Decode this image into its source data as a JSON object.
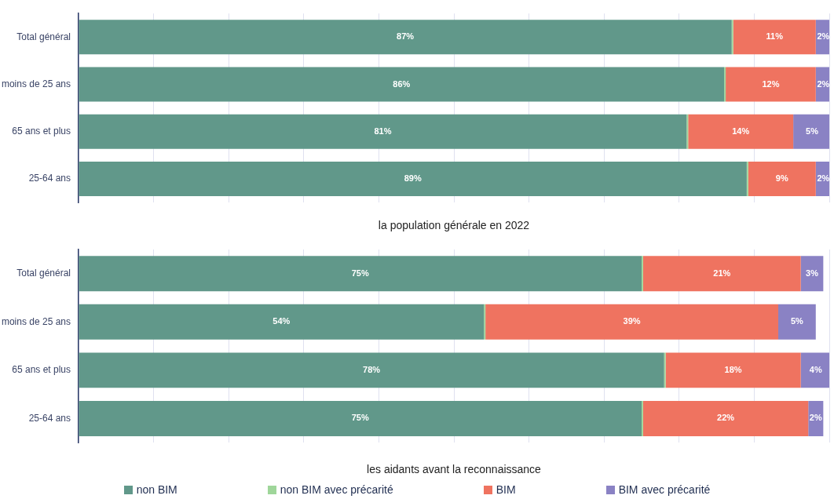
{
  "chart_data": [
    {
      "type": "bar",
      "orientation": "horizontal",
      "stacked": true,
      "xlabel": "la population générale en 2022",
      "categories": [
        "Total général",
        "moins de 25 ans",
        "65 ans et plus",
        "25-64 ans"
      ],
      "series": [
        {
          "color": "#61988a",
          "values": [
            87,
            86,
            81,
            89
          ],
          "value_labels": [
            "87%",
            "86%",
            "81%",
            "89%"
          ]
        },
        {
          "color": "#9fd69a",
          "values": [
            0.2,
            0.2,
            0.2,
            0.2
          ]
        },
        {
          "color": "#ef7360",
          "values": [
            11,
            12,
            14,
            9
          ],
          "value_labels": [
            "11%",
            "12%",
            "14%",
            "9%"
          ]
        },
        {
          "color": "#8a82c4",
          "values": [
            2,
            2,
            5,
            2
          ],
          "value_labels": [
            "2%",
            "2%",
            "5%",
            "2%"
          ]
        }
      ],
      "xlim": [
        0,
        100
      ],
      "xticks": [
        {
          "value": 0,
          "label": null
        },
        {
          "value": 10,
          "label": null
        },
        {
          "value": 20,
          "label": null
        },
        {
          "value": 30,
          "label": null
        },
        {
          "value": 40,
          "label": null
        },
        {
          "value": 50,
          "label": null
        },
        {
          "value": 60,
          "label": null
        },
        {
          "value": 70,
          "label": null
        },
        {
          "value": 80,
          "label": null
        },
        {
          "value": 90,
          "label": null
        },
        {
          "value": 100,
          "label": null
        }
      ],
      "grid": "x",
      "tick_labels": "y",
      "legend": false
    },
    {
      "type": "bar",
      "orientation": "horizontal",
      "stacked": true,
      "xlabel": "les aidants avant la reconnaissance",
      "categories": [
        "Total général",
        "moins de 25 ans",
        "65 ans et plus",
        "25-64 ans"
      ],
      "series": [
        {
          "name": "non BIM",
          "color": "#61988a",
          "values": [
            75,
            54,
            78,
            75
          ],
          "value_labels": [
            "75%",
            "54%",
            "78%",
            "75%"
          ]
        },
        {
          "name": "non BIM avec précarité",
          "color": "#9fd69a",
          "values": [
            0.2,
            0.2,
            0.2,
            0.2
          ]
        },
        {
          "name": "BIM",
          "color": "#ef7360",
          "values": [
            21,
            39,
            18,
            22
          ],
          "value_labels": [
            "21%",
            "39%",
            "18%",
            "22%"
          ]
        },
        {
          "name": "BIM avec précarité",
          "color": "#8a82c4",
          "values": [
            3,
            5,
            4,
            2
          ],
          "value_labels": [
            "3%",
            "5%",
            "4%",
            "2%"
          ]
        }
      ],
      "xlim": [
        0,
        100
      ],
      "xticks": [
        {
          "value": 0,
          "label": null
        },
        {
          "value": 10,
          "label": null
        },
        {
          "value": 20,
          "label": null
        },
        {
          "value": 30,
          "label": null
        },
        {
          "value": 40,
          "label": null
        },
        {
          "value": 50,
          "label": null
        },
        {
          "value": 60,
          "label": null
        },
        {
          "value": 70,
          "label": null
        },
        {
          "value": 80,
          "label": null
        },
        {
          "value": 90,
          "label": null
        },
        {
          "value": 100,
          "label": null
        }
      ],
      "grid": "x",
      "tick_labels": "y",
      "legend": "bottom"
    }
  ]
}
